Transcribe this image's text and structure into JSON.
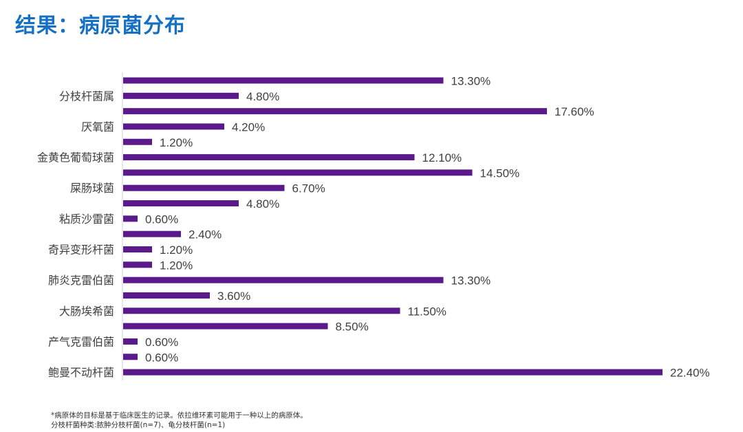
{
  "title": "结果：病原菌分布",
  "footnotes": [
    "*病原体的目标是基于临床医生的记录。依拉维环素可能用于一种以上的病原体。",
    "分枝杆菌种类:脓肿分枝杆菌(n=7)、龟分枝杆菌(n=1)"
  ],
  "chart_data": {
    "type": "bar",
    "orientation": "horizontal",
    "title": "结果：病原菌分布",
    "categories": [
      "",
      "分枝杆菌属",
      "",
      "厌氧菌",
      "",
      "金黄色葡萄球菌",
      "",
      "屎肠球菌",
      "",
      "粘质沙雷菌",
      "",
      "奇异变形杆菌",
      "",
      "肺炎克雷伯菌",
      "",
      "大肠埃希菌",
      "",
      "产气克雷伯菌",
      "",
      "鲍曼不动杆菌"
    ],
    "values": [
      13.3,
      4.8,
      17.6,
      4.2,
      1.2,
      12.1,
      14.5,
      6.7,
      4.8,
      0.6,
      2.4,
      1.2,
      1.2,
      13.3,
      3.6,
      11.5,
      8.5,
      0.6,
      0.6,
      22.4
    ],
    "data_labels": [
      "13.30%",
      "4.80%",
      "17.60%",
      "4.20%",
      "1.20%",
      "12.10%",
      "14.50%",
      "6.70%",
      "4.80%",
      "0.60%",
      "2.40%",
      "1.20%",
      "1.20%",
      "13.30%",
      "3.60%",
      "11.50%",
      "8.50%",
      "0.60%",
      "0.60%",
      "22.40%"
    ],
    "xlabel": "",
    "ylabel": "",
    "xlim": [
      0,
      22.4
    ],
    "grid": false,
    "bar_color": "#5b1a8b"
  }
}
